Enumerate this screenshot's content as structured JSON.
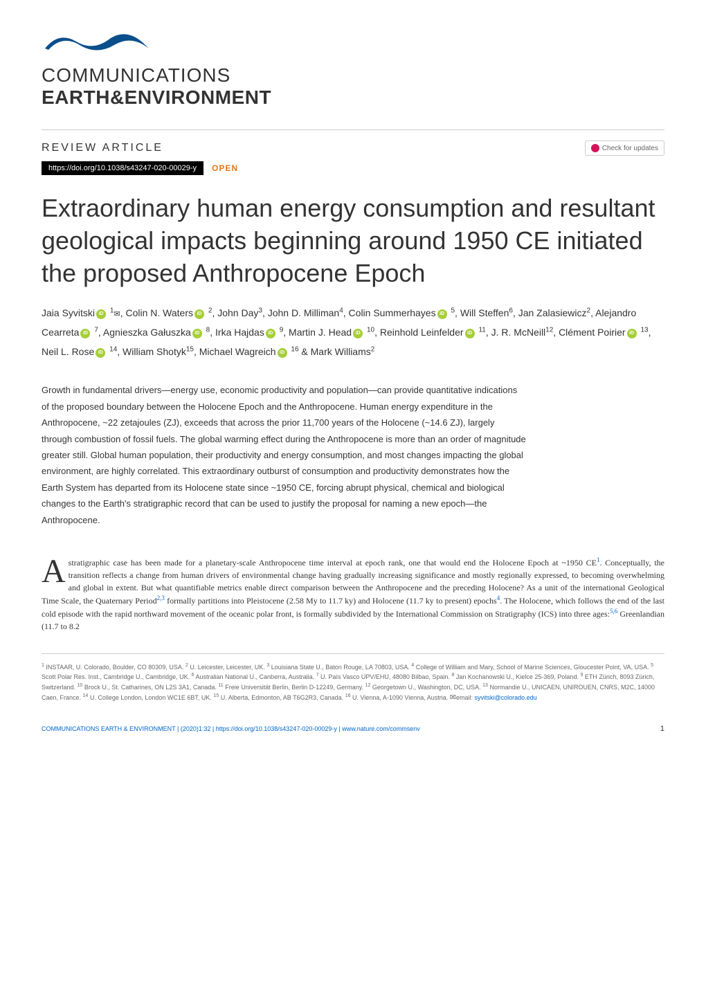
{
  "journal": {
    "name_line1": "COMMUNICATIONS",
    "name_line2": "EARTH&ENVIRONMENT",
    "wave_color": "#0a4f8c"
  },
  "article_meta": {
    "type": "REVIEW ARTICLE",
    "doi": "https://doi.org/10.1038/s43247-020-00029-y",
    "open_label": "OPEN",
    "check_updates": "Check for updates"
  },
  "title": "Extraordinary human energy consumption and resultant geological impacts beginning around 1950 CE initiated the proposed Anthropocene Epoch",
  "authors_html": "Jaia Syvitski{orcid} {sup1}{env}, Colin N. Waters{orcid} {sup2}, John Day{sup3}, John D. Milliman{sup4}, Colin Summerhayes{orcid} {sup5}, Will Steffen{sup6}, Jan Zalasiewicz{sup2}, Alejandro Cearreta{orcid} {sup7}, Agnieszka Gałuszka{orcid} {sup8}, Irka Hajdas{orcid} {sup9}, Martin J. Head{orcid} {sup10}, Reinhold Leinfelder{orcid} {sup11}, J. R. McNeill{sup12}, Clément Poirier{orcid} {sup13}, Neil L. Rose{orcid} {sup14}, William Shotyk{sup15}, Michael Wagreich{orcid} {sup16} & Mark Williams{sup2}",
  "abstract": "Growth in fundamental drivers—energy use, economic productivity and population—can provide quantitative indications of the proposed boundary between the Holocene Epoch and the Anthropocene. Human energy expenditure in the Anthropocene, ~22 zetajoules (ZJ), exceeds that across the prior 11,700 years of the Holocene (~14.6 ZJ), largely through combustion of fossil fuels. The global warming effect during the Anthropocene is more than an order of magnitude greater still. Global human population, their productivity and energy consumption, and most changes impacting the global environment, are highly correlated. This extraordinary outburst of consumption and productivity demonstrates how the Earth System has departed from its Holocene state since ~1950 CE, forcing abrupt physical, chemical and biological changes to the Earth's stratigraphic record that can be used to justify the proposal for naming a new epoch—the Anthropocene.",
  "body": {
    "dropcap": "A",
    "text": "stratigraphic case has been made for a planetary-scale Anthropocene time interval at epoch rank, one that would end the Holocene Epoch at ~1950 CE{ref1}. Conceptually, the transition reflects a change from human drivers of environmental change having gradually increasing significance and mostly regionally expressed, to becoming overwhelming and global in extent. But what quantifiable metrics enable direct comparison between the Anthropocene and the preceding Holocene? As a unit of the international Geological Time Scale, the Quaternary Period{ref2,3} formally partitions into Pleistocene (2.58 My to 11.7 ky) and Holocene (11.7 ky to present) epochs{ref4}. The Holocene, which follows the end of the last cold episode with the rapid northward movement of the oceanic polar front, is formally subdivided by the International Commission on Stratigraphy (ICS) into three ages:{ref5,6} Greenlandian (11.7 to 8.2"
  },
  "affiliations": "{s1} INSTAAR, U. Colorado, Boulder, CO 80309, USA. {s2} U. Leicester, Leicester, UK. {s3} Louisiana State U., Baton Rouge, LA 70803, USA. {s4} College of William and Mary, School of Marine Sciences, Gloucester Point, VA, USA. {s5} Scott Polar Res. Inst., Cambridge U., Cambridge, UK. {s6} Australian National U., Canberra, Australia. {s7} U. País Vasco UPV/EHU, 48080 Bilbao, Spain. {s8} Jan Kochanowski U., Kielce 25-369, Poland. {s9} ETH Zürich, 8093 Zürich, Switzerland. {s10} Brock U., St. Catharines, ON L2S 3A1, Canada. {s11} Freie Universität Berlin, Berlin D-12249, Germany. {s12} Georgetown U., Washington, DC, USA. {s13} Normandie U., UNICAEN, UNIROUEN, CNRS, M2C, 14000 Caen, France. {s14} U. College London, London WC1E 6BT, UK. {s15} U. Alberta, Edmonton, AB T6G2R3, Canada. {s16} U. Vienna, A-1090 Vienna, Austria. {env}email: ",
  "email": "syvitski@colorado.edu",
  "footer": {
    "citation": "COMMUNICATIONS EARTH & ENVIRONMENT | (2020)1:32 | https://doi.org/10.1038/s43247-020-00029-y | www.nature.com/commsenv",
    "page": "1"
  },
  "colors": {
    "wave": "#0a4f8c",
    "open_access": "#e67817",
    "link": "#0066cc",
    "orcid": "#a6ce39",
    "check_badge": "#d4145a",
    "text": "#333333",
    "muted": "#666666",
    "border": "#cccccc"
  },
  "typography": {
    "title_fontsize": 36,
    "abstract_fontsize": 13,
    "body_fontsize": 12,
    "authors_fontsize": 14,
    "affiliations_fontsize": 9
  }
}
